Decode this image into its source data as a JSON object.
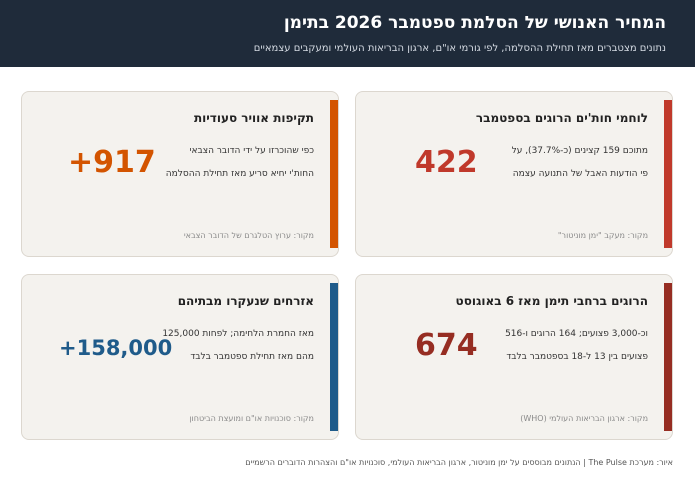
{
  "header": {
    "title": "המחיר האנושי של הסלמת ספטמבר 2026 בתימן",
    "subtitle": "נתונים מצטברים מאז תחילת ההסלמה, לפי גורמי או\"ם, ארגון הבריאות העולמי ומעקבים עצמאיים"
  },
  "colors": {
    "header_bg": "#1f2b3a",
    "red": "#c0392b",
    "orange": "#d35400",
    "dark_red": "#962d22",
    "blue": "#1f5b8a"
  },
  "cards": [
    {
      "title": "לוחמי חות'ים הרוגים בספטמבר",
      "value": "422",
      "line1": "מתוכם 159 קצינים (כ-37.7%), על",
      "line2": "פי הודעות האבל של התנועה עצמה",
      "source": "מקור: מעקב \"ימן מוניטור\""
    },
    {
      "title": "תקיפות אוויר סעודיות",
      "value": "+917",
      "line1": "כפי שהוכרזו על ידי הדובר הצבאי",
      "line2": "החות'י יחיא סריע מאז תחילת ההסלמה",
      "source": "מקור: ערוץ הטלגרם של הדובר הצבאי"
    },
    {
      "title": "הרוגים ברחבי תימן מאז 6 באוגוסט",
      "value": "674",
      "line1": "וכ-3,000 פצועים; 164 הרוגים ו-516",
      "line2": "פצועים בין 13 ל-18 בספטמבר בלבד",
      "source": "מקור: ארגון הבריאות העולמי (WHO)"
    },
    {
      "title": "אזרחים שנעקרו מבתיהם",
      "value": "+158,000",
      "line1": "מאז החמרת הלחימה; לפחות 125,000",
      "line2": "מהם מאז תחילת ספטמבר בלבד",
      "source": "מקור: סוכנויות או\"ם ומועצת הביטחון"
    }
  ],
  "footer": "איור: מערכת The Pulse | הנתונים מבוססים על ימן מוניטור, ארגון הבריאות העולמי, סוכנויות או\"ם והצהרות הדוברים הרשמיים"
}
